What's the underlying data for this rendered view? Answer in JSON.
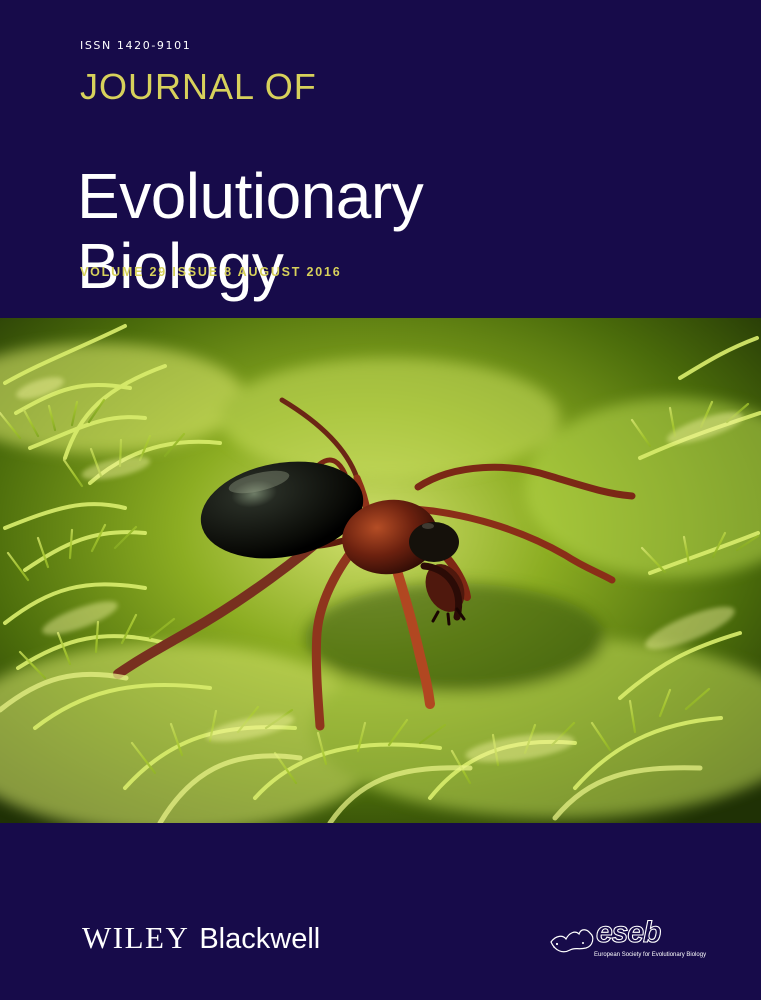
{
  "cover": {
    "issn": "ISSN 1420-9101",
    "journal_kicker": "JOURNAL OF",
    "journal_title": "Evolutionary\nBiology",
    "issue_line": "VOLUME 29  ISSUE 8  AUGUST  2016"
  },
  "publisher": {
    "wiley": "WILEY",
    "blackwell": "Blackwell"
  },
  "society": {
    "name": "eseb",
    "full_name": "European Society for Evolutionary Biology"
  },
  "colors": {
    "background": "#170b4a",
    "title_accent": "#d7d15b",
    "title": "#ffffff"
  }
}
